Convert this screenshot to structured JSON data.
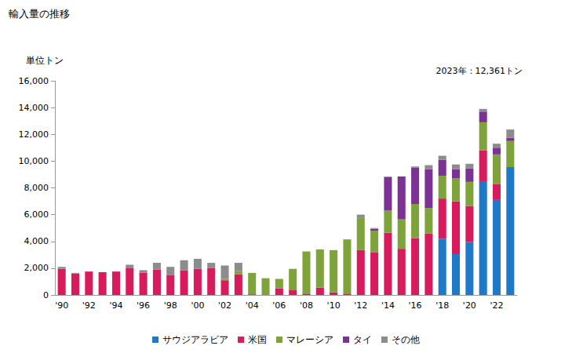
{
  "chart_data": {
    "type": "bar",
    "title": "輸入量の推移",
    "y_label": "単位トン",
    "annotation": "2023年：12,361トン",
    "stacked": true,
    "legend": "bottom",
    "grid": false,
    "categories": [
      "'90",
      null,
      "'92",
      null,
      "'94",
      null,
      "'96",
      null,
      "'98",
      null,
      "'00",
      null,
      "'02",
      null,
      "'04",
      null,
      "'06",
      null,
      "'08",
      null,
      "'10",
      null,
      "'12",
      null,
      "'14",
      null,
      "'16",
      null,
      "'18",
      null,
      "'20",
      null,
      "'22",
      null
    ],
    "series": [
      {
        "name": "サウジアラビア",
        "color": "#1f78c8",
        "values": [
          0,
          0,
          0,
          0,
          0,
          0,
          0,
          0,
          0,
          0,
          0,
          0,
          0,
          0,
          0,
          0,
          0,
          0,
          0,
          0,
          0,
          0,
          0,
          0,
          0,
          0,
          0,
          0,
          4200,
          3050,
          3950,
          8500,
          7100,
          9550
        ]
      },
      {
        "name": "米国",
        "color": "#d81b5c",
        "values": [
          1950,
          1600,
          1750,
          1700,
          1750,
          2000,
          1650,
          1900,
          1500,
          1850,
          1950,
          2000,
          1100,
          1550,
          50,
          0,
          500,
          350,
          100,
          550,
          200,
          100,
          3350,
          3200,
          4650,
          3450,
          4250,
          4600,
          3000,
          3950,
          2700,
          2300,
          1200,
          0
        ]
      },
      {
        "name": "マレーシア",
        "color": "#7ea33a",
        "values": [
          0,
          0,
          0,
          0,
          0,
          0,
          0,
          0,
          0,
          0,
          0,
          0,
          100,
          250,
          1600,
          1250,
          700,
          1600,
          3150,
          2850,
          3150,
          4050,
          2400,
          1600,
          1650,
          2200,
          2550,
          1900,
          1700,
          1700,
          1800,
          2100,
          2200,
          1950
        ]
      },
      {
        "name": "タイ",
        "color": "#7b3294",
        "values": [
          0,
          0,
          0,
          0,
          0,
          0,
          0,
          0,
          0,
          0,
          0,
          0,
          0,
          0,
          0,
          0,
          0,
          0,
          0,
          0,
          0,
          0,
          0,
          150,
          2500,
          3200,
          2700,
          2900,
          1200,
          700,
          1000,
          800,
          500,
          250
        ]
      },
      {
        "name": "その他",
        "color": "#8c8c8c",
        "values": [
          150,
          50,
          0,
          0,
          0,
          250,
          200,
          500,
          600,
          750,
          750,
          400,
          1000,
          600,
          0,
          0,
          0,
          0,
          0,
          0,
          0,
          0,
          250,
          50,
          50,
          0,
          100,
          300,
          300,
          350,
          350,
          200,
          300,
          611
        ]
      }
    ],
    "ylim": [
      0,
      16000
    ],
    "yticks": [
      0,
      {
        "value": 2000,
        "label": "2,000"
      },
      {
        "value": 4000,
        "label": "4,000"
      },
      {
        "value": 6000,
        "label": "6,000"
      },
      {
        "value": 8000,
        "label": "8,000"
      },
      {
        "value": 10000,
        "label": "10,000"
      },
      {
        "value": 12000,
        "label": "12,000"
      },
      {
        "value": 14000,
        "label": "14,000"
      },
      {
        "value": 16000,
        "label": "16,000"
      }
    ]
  }
}
